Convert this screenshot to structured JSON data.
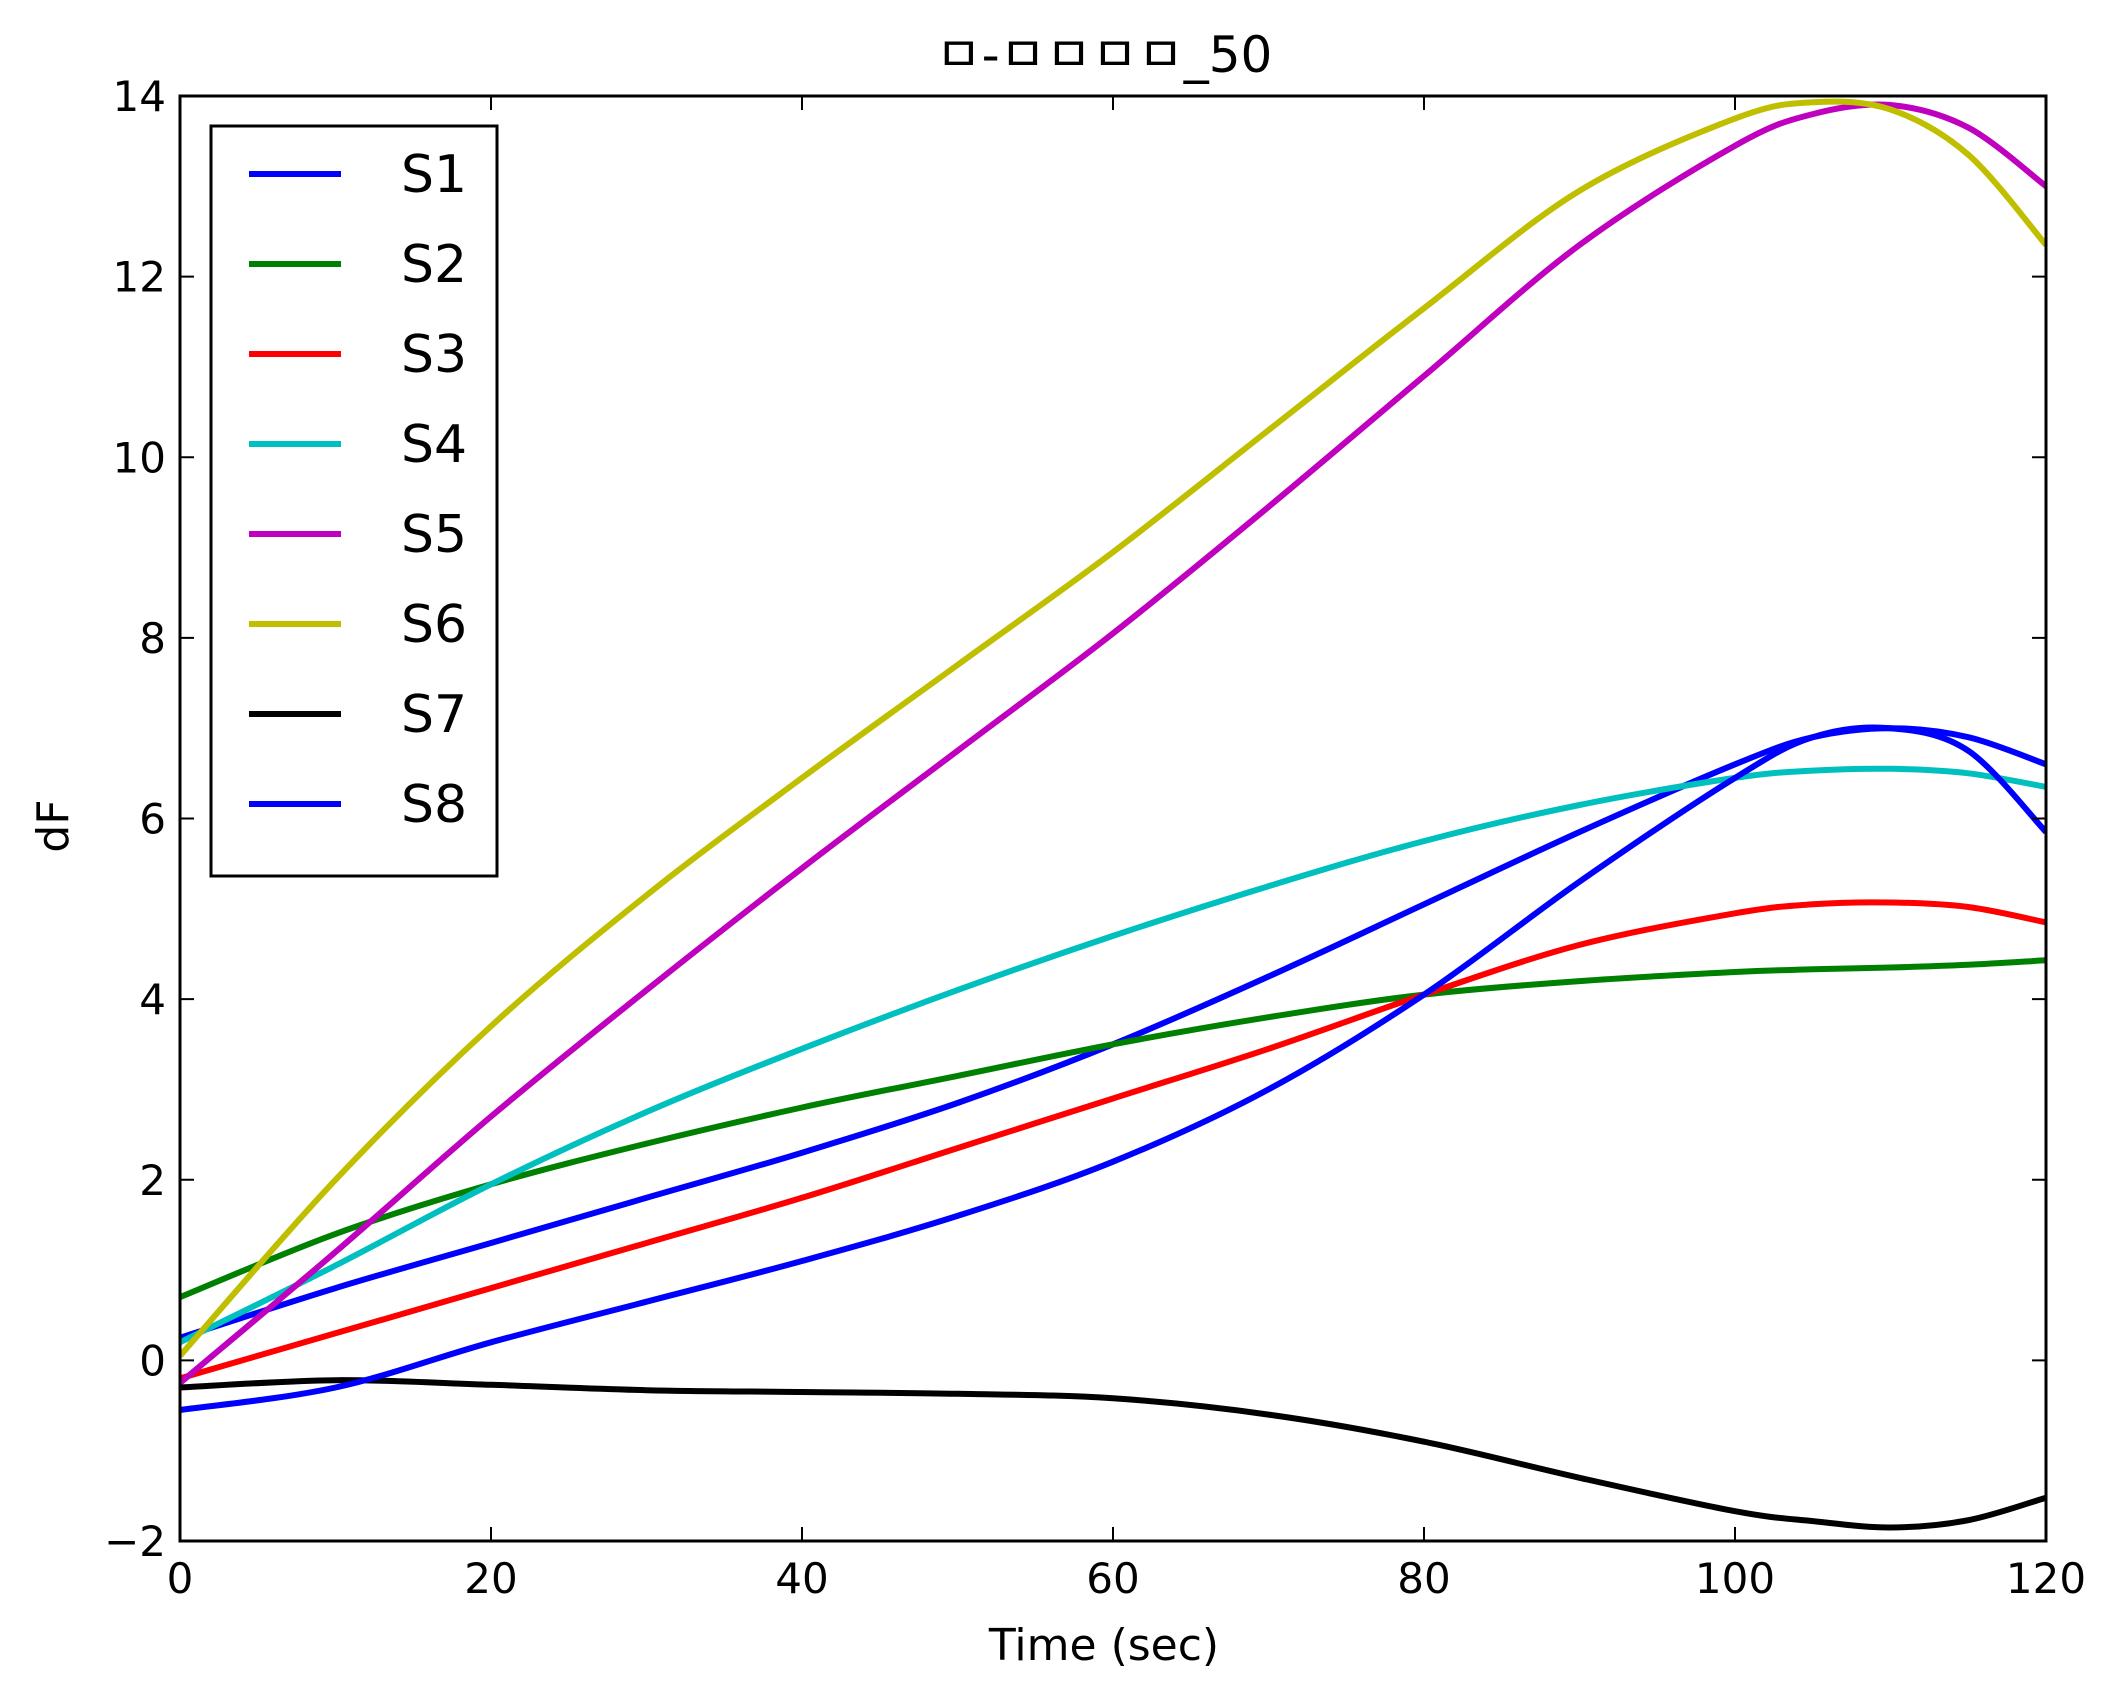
{
  "chart_data": {
    "type": "line",
    "title": "ㅁ-ㅁㅁㅁㅁ_50",
    "xlabel": "Time (sec)",
    "ylabel": "dF",
    "xlim": [
      0,
      120
    ],
    "ylim": [
      -2,
      14
    ],
    "x_ticks": [
      0,
      20,
      40,
      60,
      80,
      100,
      120
    ],
    "y_ticks": [
      -2,
      0,
      2,
      4,
      6,
      8,
      10,
      12,
      14
    ],
    "x_tick_labels": [
      "0",
      "20",
      "40",
      "60",
      "80",
      "100",
      "120"
    ],
    "y_tick_labels": [
      "−2",
      "0",
      "2",
      "4",
      "6",
      "8",
      "10",
      "12",
      "14"
    ],
    "grid": false,
    "legend_position": "top-left",
    "x": [
      0,
      10,
      20,
      30,
      40,
      50,
      60,
      70,
      80,
      90,
      100,
      105,
      110,
      115,
      120
    ],
    "series": [
      {
        "name": "S1",
        "color": "#0000ff",
        "values": [
          0.25,
          0.8,
          1.3,
          1.8,
          2.3,
          2.85,
          3.5,
          4.25,
          5.05,
          5.85,
          6.6,
          6.9,
          7.0,
          6.9,
          6.6
        ]
      },
      {
        "name": "S2",
        "color": "#008000",
        "values": [
          0.7,
          1.4,
          1.95,
          2.4,
          2.8,
          3.15,
          3.5,
          3.8,
          4.05,
          4.2,
          4.3,
          4.33,
          4.35,
          4.38,
          4.43
        ]
      },
      {
        "name": "S3",
        "color": "#ff0000",
        "values": [
          -0.2,
          0.3,
          0.8,
          1.3,
          1.8,
          2.35,
          2.9,
          3.45,
          4.05,
          4.6,
          4.95,
          5.05,
          5.07,
          5.02,
          4.85
        ]
      },
      {
        "name": "S4",
        "color": "#00bfbf",
        "values": [
          0.2,
          1.05,
          1.95,
          2.75,
          3.45,
          4.1,
          4.7,
          5.25,
          5.75,
          6.15,
          6.45,
          6.53,
          6.55,
          6.5,
          6.35
        ]
      },
      {
        "name": "S5",
        "color": "#bf00bf",
        "values": [
          -0.25,
          1.2,
          2.7,
          4.1,
          5.45,
          6.75,
          8.05,
          9.45,
          10.9,
          12.35,
          13.45,
          13.8,
          13.9,
          13.65,
          13.0
        ]
      },
      {
        "name": "S6",
        "color": "#bfbf00",
        "values": [
          0.05,
          2.0,
          3.7,
          5.15,
          6.45,
          7.7,
          8.95,
          10.3,
          11.65,
          12.95,
          13.75,
          13.93,
          13.85,
          13.35,
          12.35
        ]
      },
      {
        "name": "S7",
        "color": "#000000",
        "values": [
          -0.3,
          -0.22,
          -0.27,
          -0.33,
          -0.35,
          -0.37,
          -0.42,
          -0.6,
          -0.9,
          -1.3,
          -1.67,
          -1.78,
          -1.85,
          -1.77,
          -1.52
        ]
      },
      {
        "name": "S8",
        "color": "#0000ff",
        "values": [
          -0.55,
          -0.3,
          0.2,
          0.65,
          1.1,
          1.6,
          2.2,
          3.0,
          4.05,
          5.3,
          6.45,
          6.9,
          7.0,
          6.75,
          5.85
        ]
      }
    ]
  }
}
